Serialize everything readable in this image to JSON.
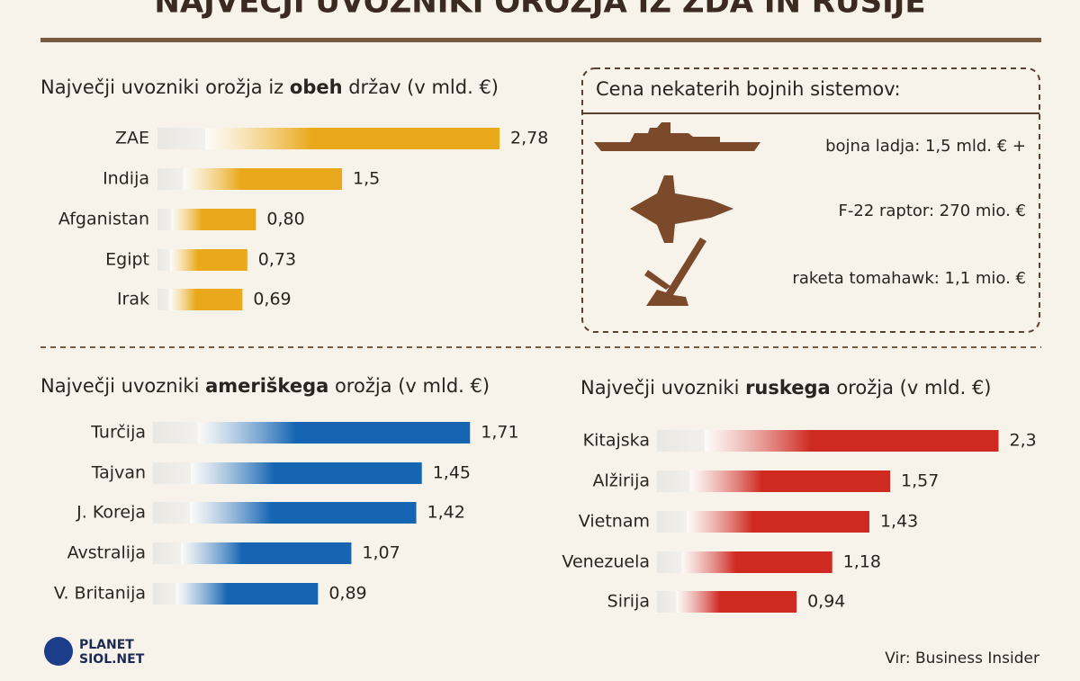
{
  "header": {
    "title": "NAJVEČJI UVOZNIKI OROŽJA IZ ZDA IN RUSIJE"
  },
  "chart_data": [
    {
      "type": "bar",
      "orientation": "horizontal",
      "title_parts": [
        "Največji uvozniki orožja iz ",
        "obeh",
        " držav (v mld. €)"
      ],
      "categories": [
        "ZAE",
        "Indija",
        "Afganistan",
        "Egipt",
        "Irak"
      ],
      "values": [
        2.78,
        1.5,
        0.8,
        0.73,
        0.69
      ],
      "value_labels": [
        "2,78",
        "1,5",
        "0,80",
        "0,73",
        "0,69"
      ],
      "color": "#eaa91a"
    },
    {
      "type": "bar",
      "orientation": "horizontal",
      "title_parts": [
        "Največji uvozniki ",
        "ameriškega",
        " orožja (v mld. €)"
      ],
      "categories": [
        "Turčija",
        "Tajvan",
        "J. Koreja",
        "Avstralija",
        "V. Britanija"
      ],
      "values": [
        1.71,
        1.45,
        1.42,
        1.07,
        0.89
      ],
      "value_labels": [
        "1,71",
        "1,45",
        "1,42",
        "1,07",
        "0,89"
      ],
      "color": "#1565b3"
    },
    {
      "type": "bar",
      "orientation": "horizontal",
      "title_parts": [
        "Največji uvozniki ",
        "ruskega",
        " orožja (v mld. €)"
      ],
      "categories": [
        "Kitajska",
        "Alžirija",
        "Vietnam",
        "Venezuela",
        "Sirija"
      ],
      "values": [
        2.3,
        1.57,
        1.43,
        1.18,
        0.94
      ],
      "value_labels": [
        "2,3",
        "1,57",
        "1,43",
        "1,18",
        "0,94"
      ],
      "color": "#cf2a22"
    }
  ],
  "costs": {
    "title": "Cena nekaterih bojnih sistemov:",
    "items": [
      "bojna ladja: 1,5 mld. € +",
      "F-22 raptor: 270 mio. €",
      "raketa tomahawk: 1,1 mio. €"
    ]
  },
  "footer": {
    "logo": [
      "PLANET",
      "SIOL.NET"
    ],
    "source": "Vir: Business Insider"
  }
}
